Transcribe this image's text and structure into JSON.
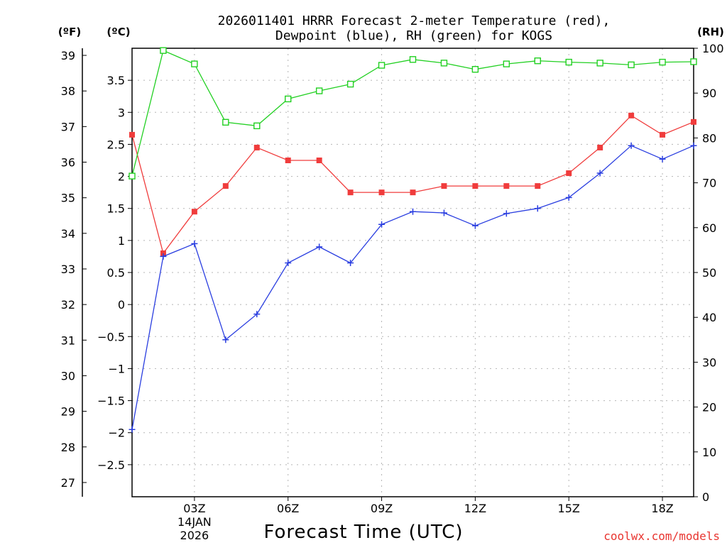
{
  "chart_data": {
    "type": "line",
    "title_lines": [
      "2026011401 HRRR Forecast 2-meter Temperature (red),",
      "Dewpoint (blue), RH (green) for KOGS"
    ],
    "units": {
      "fahrenheit": "(ºF)",
      "celsius": "(ºC)",
      "rh": "(RH)"
    },
    "xlabel": "Forecast Time (UTC)",
    "credit": "coolwx.com/models",
    "x": [
      1,
      2,
      3,
      4,
      5,
      6,
      7,
      8,
      9,
      10,
      11,
      12,
      13,
      14,
      15,
      16,
      17,
      18,
      19
    ],
    "x_range": [
      1,
      19
    ],
    "x_ticks": [
      {
        "x": 3,
        "label": "03Z",
        "sublabels": [
          "14JAN",
          "2026"
        ]
      },
      {
        "x": 6,
        "label": "06Z",
        "sublabels": []
      },
      {
        "x": 9,
        "label": "09Z",
        "sublabels": []
      },
      {
        "x": 12,
        "label": "12Z",
        "sublabels": []
      },
      {
        "x": 15,
        "label": "15Z",
        "sublabels": []
      },
      {
        "x": 18,
        "label": "18Z",
        "sublabels": []
      }
    ],
    "y_celsius": {
      "range": [
        -3,
        4
      ],
      "ticks": [
        3.5,
        3,
        2.5,
        2,
        1.5,
        1,
        0.5,
        0,
        -0.5,
        -1,
        -1.5,
        -2,
        -2.5
      ],
      "tick_labels": [
        "3.5",
        "3",
        "2.5",
        "2",
        "1.5",
        "1",
        "0.5",
        "0",
        "−0.5",
        "−1",
        "−1.5",
        "−2",
        "−2.5"
      ]
    },
    "y_fahrenheit": {
      "ticks": [
        39,
        38,
        37,
        36,
        35,
        34,
        33,
        32,
        31,
        30,
        29,
        28,
        27
      ],
      "tick_labels": [
        "39",
        "38",
        "37",
        "36",
        "35",
        "34",
        "33",
        "32",
        "31",
        "30",
        "29",
        "28",
        "27"
      ]
    },
    "y_rh": {
      "range": [
        0,
        100
      ],
      "ticks": [
        100,
        90,
        80,
        70,
        60,
        50,
        40,
        30,
        20,
        10,
        0
      ],
      "tick_labels": [
        "100",
        "90",
        "80",
        "70",
        "60",
        "50",
        "40",
        "30",
        "20",
        "10",
        "0"
      ]
    },
    "grid": true,
    "series": [
      {
        "key": "temperature",
        "axis": "celsius",
        "color": "#f03c3c",
        "marker": "filled-square",
        "values": [
          2.65,
          0.8,
          1.45,
          1.85,
          2.45,
          2.25,
          2.25,
          1.75,
          1.75,
          1.75,
          1.85,
          1.85,
          1.85,
          1.85,
          2.05,
          2.45,
          2.95,
          2.65,
          2.85
        ]
      },
      {
        "key": "dewpoint",
        "axis": "celsius",
        "color": "#2a3ee0",
        "marker": "plus",
        "values": [
          -1.95,
          0.75,
          0.95,
          -0.55,
          -0.15,
          0.65,
          0.9,
          0.65,
          1.25,
          1.45,
          1.43,
          1.23,
          1.42,
          1.5,
          1.67,
          2.05,
          2.48,
          2.27,
          2.48
        ]
      },
      {
        "key": "rh",
        "axis": "rh",
        "color": "#22d022",
        "marker": "open-square",
        "values": [
          71.5,
          99.5,
          96.5,
          83.5,
          82.7,
          88.7,
          90.5,
          92,
          96.2,
          97.5,
          96.7,
          95.3,
          96.5,
          97.2,
          96.9,
          96.7,
          96.3,
          96.9,
          97
        ]
      }
    ]
  }
}
